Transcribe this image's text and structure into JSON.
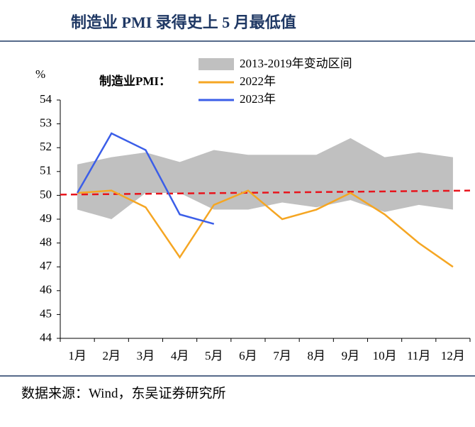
{
  "chart_data": {
    "type": "line",
    "title": "制造业 PMI 录得史上 5 月最低值",
    "y_unit": "%",
    "legend_label": "制造业PMI：",
    "source": "数据来源：Wind，东吴证券研究所",
    "categories": [
      "1月",
      "2月",
      "3月",
      "4月",
      "5月",
      "6月",
      "7月",
      "8月",
      "9月",
      "10月",
      "11月",
      "12月"
    ],
    "band": {
      "name": "2013-2019年变动区间",
      "color": "#c0c0c0",
      "upper": [
        51.3,
        51.6,
        51.8,
        51.4,
        51.9,
        51.7,
        51.7,
        51.7,
        52.4,
        51.6,
        51.8,
        51.6
      ],
      "lower": [
        49.4,
        49.0,
        50.1,
        50.1,
        49.4,
        49.4,
        49.7,
        49.5,
        49.8,
        49.3,
        49.6,
        49.4
      ]
    },
    "series": [
      {
        "name": "2022年",
        "color": "#f5a623",
        "values": [
          50.1,
          50.2,
          49.5,
          47.4,
          49.6,
          50.2,
          49.0,
          49.4,
          50.1,
          49.2,
          48.0,
          47.0
        ]
      },
      {
        "name": "2023年",
        "color": "#3b5ee8",
        "values": [
          50.1,
          52.6,
          51.9,
          49.2,
          48.8,
          null,
          null,
          null,
          null,
          null,
          null,
          null
        ]
      }
    ],
    "reference_line": {
      "color": "#e8141c",
      "start": 50.03,
      "end": 50.2
    },
    "ylim": [
      44,
      54
    ],
    "yticks": [
      44,
      45,
      46,
      47,
      48,
      49,
      50,
      51,
      52,
      53,
      54
    ]
  }
}
